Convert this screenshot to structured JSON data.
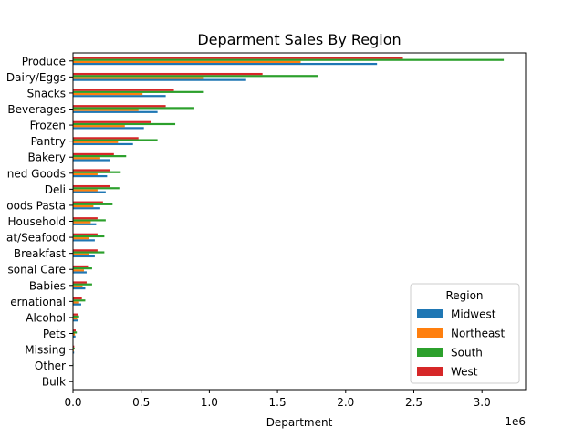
{
  "chart_data": {
    "type": "bar",
    "orientation": "horizontal",
    "title": "Deparment Sales By Region",
    "xlabel": "Department",
    "ylabel": "",
    "x_offset_label": "1e6",
    "xlim": [
      0,
      3320000
    ],
    "x_ticks": [
      0,
      500000,
      1000000,
      1500000,
      2000000,
      2500000,
      3000000
    ],
    "x_tick_labels": [
      "0.0",
      "0.5",
      "1.0",
      "1.5",
      "2.0",
      "2.5",
      "3.0"
    ],
    "categories": [
      "Produce",
      "Dairy/Eggs",
      "Snacks",
      "Beverages",
      "Frozen",
      "Pantry",
      "Bakery",
      "Canned Goods",
      "Deli",
      "Dry Goods Pasta",
      "Household",
      "Meat/Seafood",
      "Breakfast",
      "Personal Care",
      "Babies",
      "International",
      "Alcohol",
      "Pets",
      "Missing",
      "Other",
      "Bulk"
    ],
    "category_display": [
      "Produce",
      "Dairy/Eggs",
      "Snacks",
      "Beverages",
      "Frozen",
      "Pantry",
      "Bakery",
      "ned Goods",
      "Deli",
      "oods Pasta",
      "Household",
      "at/Seafood",
      "Breakfast",
      "sonal Care",
      "Babies",
      "ernational",
      "Alcohol",
      "Pets",
      "Missing",
      "Other",
      "Bulk"
    ],
    "legend_title": "Region",
    "legend_position": "lower-right",
    "grid": false,
    "series": [
      {
        "name": "Midwest",
        "color": "#1f77b4",
        "values": [
          2230000,
          1270000,
          680000,
          620000,
          520000,
          440000,
          270000,
          250000,
          240000,
          200000,
          170000,
          160000,
          160000,
          100000,
          90000,
          60000,
          35000,
          18000,
          8000,
          3000,
          2000
        ]
      },
      {
        "name": "Northeast",
        "color": "#ff7f0e",
        "values": [
          1670000,
          960000,
          510000,
          480000,
          380000,
          330000,
          200000,
          180000,
          180000,
          150000,
          130000,
          120000,
          120000,
          80000,
          70000,
          45000,
          30000,
          14000,
          6000,
          2000,
          1500
        ]
      },
      {
        "name": "South",
        "color": "#2ca02c",
        "values": [
          3160000,
          1800000,
          960000,
          890000,
          750000,
          620000,
          390000,
          350000,
          340000,
          290000,
          240000,
          230000,
          230000,
          140000,
          140000,
          90000,
          45000,
          28000,
          12000,
          4000,
          3000
        ]
      },
      {
        "name": "West",
        "color": "#d62728",
        "values": [
          2420000,
          1390000,
          740000,
          680000,
          570000,
          480000,
          300000,
          270000,
          270000,
          220000,
          180000,
          180000,
          180000,
          110000,
          100000,
          65000,
          40000,
          20000,
          9000,
          3000,
          2000
        ]
      }
    ]
  }
}
